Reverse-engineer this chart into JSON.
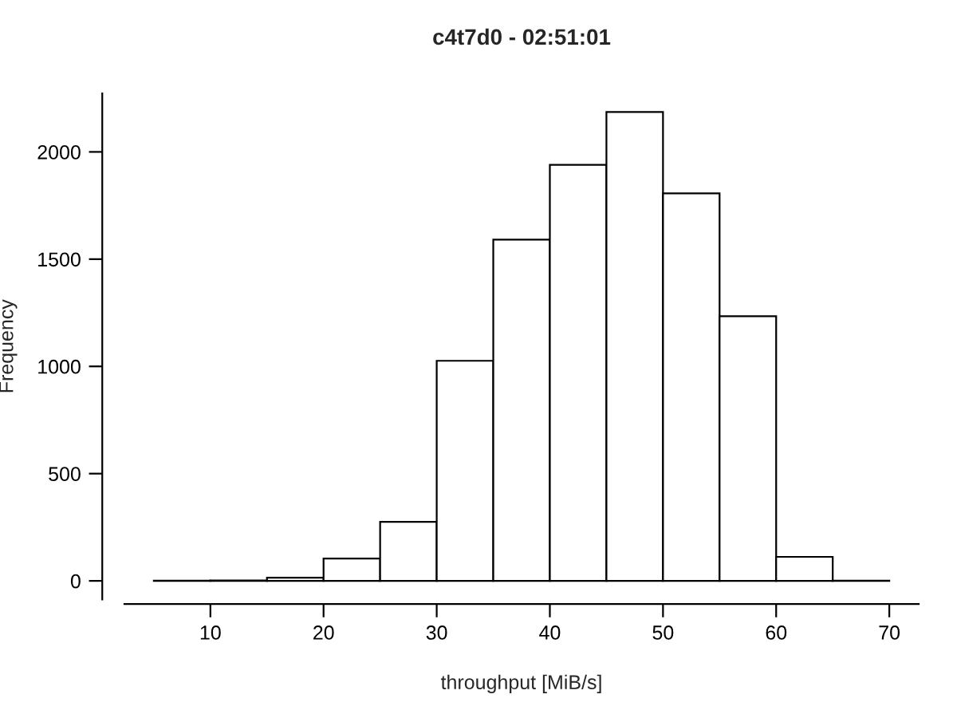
{
  "chart_data": {
    "type": "histogram",
    "title": "c4t7d0 - 02:51:01",
    "xlabel": "throughput [MiB/s]",
    "ylabel": "Frequency",
    "bins": [
      5,
      10,
      15,
      20,
      25,
      30,
      35,
      40,
      45,
      50,
      55,
      60,
      65,
      70
    ],
    "values": [
      1,
      2,
      15,
      104,
      275,
      1026,
      1591,
      1940,
      2186,
      1807,
      1234,
      112,
      1
    ],
    "color": "#ffffff",
    "xlim": [
      2.4,
      72.6
    ],
    "ylim": [
      -87,
      2273
    ],
    "xticks": [
      10,
      20,
      30,
      40,
      50,
      60,
      70
    ],
    "yticks": [
      0,
      500,
      1000,
      1500,
      2000
    ],
    "grid": false
  }
}
